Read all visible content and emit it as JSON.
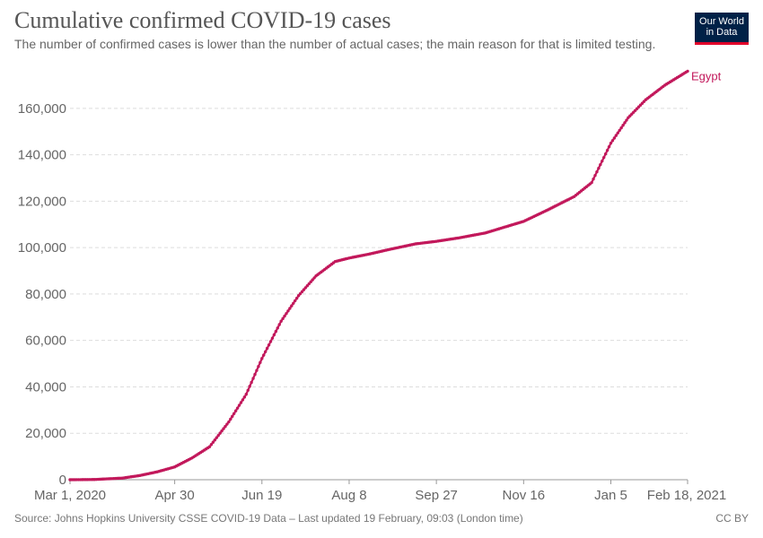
{
  "header": {
    "title": "Cumulative confirmed COVID-19 cases",
    "subtitle": "The number of confirmed cases is lower than the number of actual cases; the main reason for that is limited testing.",
    "logo_line1": "Our World",
    "logo_line2": "in Data"
  },
  "footer": {
    "source": "Source: Johns Hopkins University CSSE COVID-19 Data – Last updated 19 February, 09:03 (London time)",
    "license": "CC BY"
  },
  "colors": {
    "series": "#c2185b",
    "grid": "#dddddd",
    "axis": "#999999"
  },
  "chart_data": {
    "type": "line",
    "title": "Cumulative confirmed COVID-19 cases",
    "subtitle": "The number of confirmed cases is lower than the number of actual cases; the main reason for that is limited testing.",
    "xlabel": "",
    "ylabel": "",
    "xlim": [
      "2020-03-01",
      "2021-02-18"
    ],
    "ylim": [
      0,
      175000
    ],
    "grid": "horizontal",
    "x_ticks": [
      {
        "date": "2020-03-01",
        "label": "Mar 1, 2020"
      },
      {
        "date": "2020-04-30",
        "label": "Apr 30"
      },
      {
        "date": "2020-06-19",
        "label": "Jun 19"
      },
      {
        "date": "2020-08-08",
        "label": "Aug 8"
      },
      {
        "date": "2020-09-27",
        "label": "Sep 27"
      },
      {
        "date": "2020-11-16",
        "label": "Nov 16"
      },
      {
        "date": "2021-01-05",
        "label": "Jan 5"
      },
      {
        "date": "2021-02-18",
        "label": "Feb 18, 2021"
      }
    ],
    "y_ticks": [
      {
        "value": 0,
        "label": "0"
      },
      {
        "value": 20000,
        "label": "20,000"
      },
      {
        "value": 40000,
        "label": "40,000"
      },
      {
        "value": 60000,
        "label": "60,000"
      },
      {
        "value": 80000,
        "label": "80,000"
      },
      {
        "value": 100000,
        "label": "100,000"
      },
      {
        "value": 120000,
        "label": "120,000"
      },
      {
        "value": 140000,
        "label": "140,000"
      },
      {
        "value": 160000,
        "label": "160,000"
      }
    ],
    "series": [
      {
        "name": "Egypt",
        "points": [
          [
            "2020-03-01",
            0
          ],
          [
            "2020-03-15",
            100
          ],
          [
            "2020-03-31",
            700
          ],
          [
            "2020-04-10",
            1800
          ],
          [
            "2020-04-20",
            3400
          ],
          [
            "2020-04-30",
            5500
          ],
          [
            "2020-05-10",
            9400
          ],
          [
            "2020-05-20",
            14200
          ],
          [
            "2020-05-31",
            24900
          ],
          [
            "2020-06-10",
            36800
          ],
          [
            "2020-06-19",
            52200
          ],
          [
            "2020-06-30",
            68300
          ],
          [
            "2020-07-10",
            79300
          ],
          [
            "2020-07-20",
            87800
          ],
          [
            "2020-07-31",
            94000
          ],
          [
            "2020-08-08",
            95500
          ],
          [
            "2020-08-20",
            97300
          ],
          [
            "2020-08-31",
            99200
          ],
          [
            "2020-09-15",
            101600
          ],
          [
            "2020-09-27",
            102700
          ],
          [
            "2020-10-10",
            104200
          ],
          [
            "2020-10-25",
            106300
          ],
          [
            "2020-11-05",
            108800
          ],
          [
            "2020-11-16",
            111300
          ],
          [
            "2020-11-30",
            116300
          ],
          [
            "2020-12-15",
            122000
          ],
          [
            "2020-12-25",
            128000
          ],
          [
            "2021-01-05",
            145000
          ],
          [
            "2021-01-15",
            156000
          ],
          [
            "2021-01-25",
            163700
          ],
          [
            "2021-02-05",
            170000
          ],
          [
            "2021-02-18",
            176000
          ]
        ]
      }
    ]
  }
}
